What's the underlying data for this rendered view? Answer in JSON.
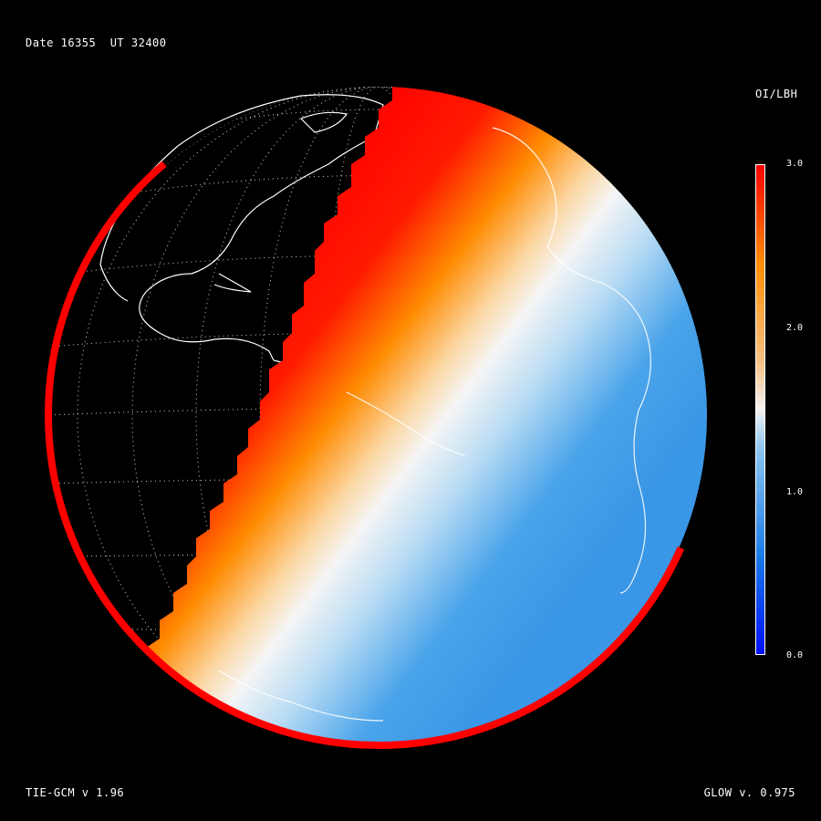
{
  "header": {
    "date_label": "Date 16355  UT 32400"
  },
  "footer": {
    "left_label": "TIE-GCM v 1.96",
    "right_label": "GLOW v. 0.975"
  },
  "colorbar": {
    "title": "OI/LBH",
    "ticks": [
      "3.0",
      "2.0",
      "1.0",
      "0.0"
    ],
    "range": [
      0.0,
      3.0
    ],
    "colors": [
      "#0010ff",
      "#1a7be8",
      "#8cc6f2",
      "#f2f2f2",
      "#f7c183",
      "#ff8c00",
      "#ff0000"
    ]
  }
}
